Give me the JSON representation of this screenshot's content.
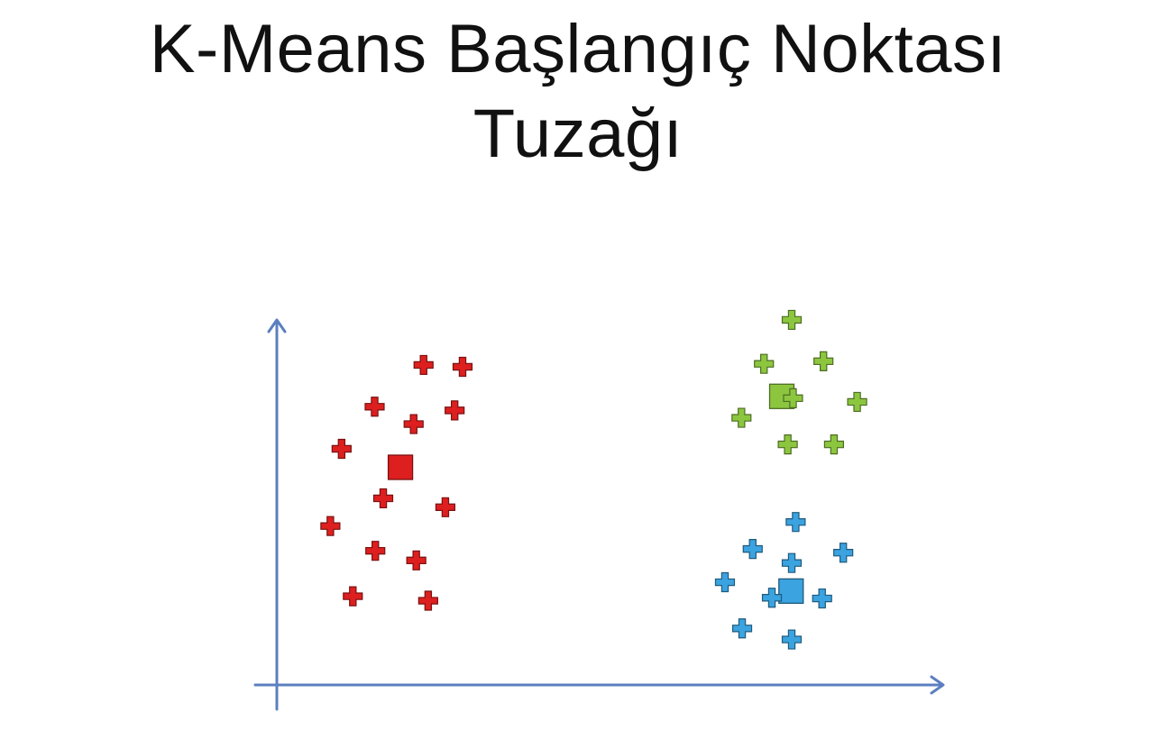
{
  "title": {
    "line1": "K-Means Başlangıç Noktası",
    "line2": "Tuzağı"
  },
  "chart_data": {
    "type": "scatter",
    "title": "K-Means Başlangıç Noktası Tuzağı",
    "xlabel": "",
    "ylabel": "",
    "xlim": [
      0,
      100
    ],
    "ylim": [
      0,
      100
    ],
    "axis_color": "#5b7fc0",
    "grid": false,
    "legend": "none",
    "series": [
      {
        "color": "#dd1f1f",
        "points": [
          [
            22.2,
            86.6
          ],
          [
            28.1,
            86.1
          ],
          [
            14.8,
            75.3
          ],
          [
            26.9,
            74.3
          ],
          [
            20.7,
            70.6
          ],
          [
            9.8,
            63.9
          ],
          [
            16.1,
            50.5
          ],
          [
            25.5,
            48.1
          ],
          [
            8.1,
            43.0
          ],
          [
            14.9,
            36.3
          ],
          [
            21.1,
            33.7
          ],
          [
            11.5,
            24.0
          ],
          [
            22.9,
            22.8
          ]
        ],
        "centroid": [
          18.7,
          58.9
        ]
      },
      {
        "color": "#8cc63f",
        "points": [
          [
            77.9,
            98.8
          ],
          [
            73.7,
            86.9
          ],
          [
            82.7,
            87.6
          ],
          [
            78.1,
            77.6
          ],
          [
            87.8,
            76.6
          ],
          [
            70.3,
            72.3
          ],
          [
            77.3,
            65.1
          ],
          [
            84.3,
            65.1
          ]
        ],
        "centroid": [
          76.4,
          78.1
        ]
      },
      {
        "color": "#3aa3e0",
        "points": [
          [
            78.5,
            44.1
          ],
          [
            72.0,
            36.8
          ],
          [
            85.7,
            35.8
          ],
          [
            77.9,
            33.0
          ],
          [
            67.8,
            27.8
          ],
          [
            74.9,
            23.6
          ],
          [
            82.5,
            23.4
          ],
          [
            70.4,
            15.3
          ],
          [
            77.9,
            12.3
          ]
        ],
        "centroid": [
          77.8,
          25.4
        ]
      }
    ]
  }
}
